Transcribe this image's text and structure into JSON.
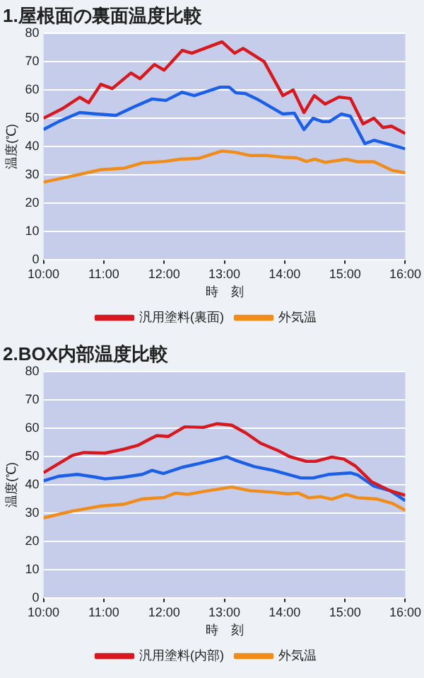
{
  "chart_data": [
    {
      "type": "line",
      "title": "1.屋根面の裏面温度比較",
      "xlabel": "時　刻",
      "ylabel": "温度(℃)",
      "xlim": [
        10,
        16
      ],
      "xticks": [
        {
          "value": 10,
          "label": "10:00"
        },
        {
          "value": 11,
          "label": "11:00"
        },
        {
          "value": 12,
          "label": "12:00"
        },
        {
          "value": 13,
          "label": "13:00"
        },
        {
          "value": 14,
          "label": "14:00"
        },
        {
          "value": 15,
          "label": "15:00"
        },
        {
          "value": 16,
          "label": "16:00"
        }
      ],
      "ylim": [
        0,
        80
      ],
      "yticks": [
        0,
        10,
        20,
        30,
        40,
        50,
        60,
        70,
        80
      ],
      "grid": "y",
      "legend": "bottom",
      "marker": "none",
      "line_style": "solid",
      "series": [
        {
          "name": "汎用塗料(裏面)",
          "color": "#d7191f",
          "x": [
            10,
            10.33,
            10.6,
            10.75,
            10.95,
            11.14,
            11.45,
            11.6,
            11.84,
            12,
            12.3,
            12.46,
            12.96,
            13.17,
            13.31,
            13.66,
            13.97,
            14.14,
            14.32,
            14.49,
            14.67,
            14.9,
            15.09,
            15.3,
            15.48,
            15.63,
            15.77,
            16
          ],
          "values": [
            50,
            53.6,
            57.4,
            55.5,
            62,
            60.5,
            66,
            64,
            69,
            67,
            74,
            73,
            77,
            73,
            74.7,
            70,
            58,
            60,
            52,
            58,
            55,
            57.5,
            57,
            48,
            50,
            46.7,
            47.2,
            44.6
          ]
        },
        {
          "color": "#1a5fe6",
          "x": [
            10,
            10.25,
            10.6,
            10.87,
            11.2,
            11.5,
            11.8,
            12.03,
            12.3,
            12.5,
            12.93,
            13.08,
            13.19,
            13.35,
            13.54,
            13.97,
            14.16,
            14.32,
            14.47,
            14.63,
            14.74,
            14.94,
            15.09,
            15.33,
            15.48,
            16
          ],
          "values": [
            46,
            48.8,
            52,
            51.5,
            51,
            54,
            56.8,
            56.3,
            59.2,
            58,
            61,
            61,
            59,
            58.7,
            56.8,
            51.5,
            51.8,
            46,
            50,
            48.8,
            48.8,
            51.5,
            50.7,
            41,
            42.2,
            39.2
          ]
        },
        {
          "name": "外気温",
          "color": "#f08c1a",
          "x": [
            10,
            10.48,
            10.95,
            11.33,
            11.64,
            12,
            12.26,
            12.57,
            12.96,
            13.19,
            13.43,
            13.7,
            13.97,
            14.2,
            14.36,
            14.5,
            14.67,
            15.02,
            15.21,
            15.48,
            15.79,
            16
          ],
          "values": [
            27.4,
            29.6,
            31.8,
            32.3,
            34.2,
            34.7,
            35.5,
            35.8,
            38.4,
            37.9,
            36.8,
            36.8,
            36.2,
            36,
            34.7,
            35.5,
            34.4,
            35.5,
            34.6,
            34.6,
            31.5,
            30.7
          ]
        }
      ]
    },
    {
      "type": "line",
      "title": "2.BOX内部温度比較",
      "xlabel": "時　刻",
      "ylabel": "温度(℃)",
      "xlim": [
        10,
        16
      ],
      "xticks": [
        {
          "value": 10,
          "label": "10:00"
        },
        {
          "value": 11,
          "label": "11:00"
        },
        {
          "value": 12,
          "label": "12:00"
        },
        {
          "value": 13,
          "label": "13:00"
        },
        {
          "value": 14,
          "label": "14:00"
        },
        {
          "value": 15,
          "label": "15:00"
        },
        {
          "value": 16,
          "label": "16:00"
        }
      ],
      "ylim": [
        0,
        80
      ],
      "yticks": [
        0,
        10,
        20,
        30,
        40,
        50,
        60,
        70,
        80
      ],
      "grid": "y",
      "legend": "bottom",
      "marker": "none",
      "line_style": "solid",
      "series": [
        {
          "name": "汎用塗料(内部)",
          "color": "#d7191f",
          "x": [
            10,
            10.48,
            10.67,
            11.02,
            11.33,
            11.56,
            11.8,
            11.88,
            12.07,
            12.34,
            12.65,
            12.88,
            13.12,
            13.35,
            13.6,
            13.9,
            14.09,
            14.36,
            14.51,
            14.78,
            14.98,
            15.17,
            15.44,
            15.75,
            16
          ],
          "values": [
            44.3,
            50.4,
            51.4,
            51.2,
            52.6,
            53.9,
            56.6,
            57.4,
            57.1,
            60.5,
            60.3,
            61.6,
            61.1,
            58.4,
            54.7,
            52,
            49.9,
            48.3,
            48.3,
            49.8,
            49.1,
            46.7,
            41.1,
            37.9,
            36.3
          ]
        },
        {
          "color": "#1a5fe6",
          "x": [
            10,
            10.25,
            10.56,
            10.87,
            11.02,
            11.33,
            11.64,
            11.8,
            11.99,
            12.3,
            12.57,
            13.04,
            13.19,
            13.5,
            13.81,
            14.27,
            14.47,
            14.74,
            15.09,
            15.21,
            15.48,
            15.75,
            16
          ],
          "values": [
            41.4,
            43,
            43.7,
            42.7,
            42.1,
            42.7,
            43.7,
            45.1,
            44,
            46.2,
            47.5,
            49.9,
            48.6,
            46.4,
            45.1,
            42.4,
            42.4,
            43.7,
            44.2,
            43.5,
            39.5,
            37.9,
            34.4
          ]
        },
        {
          "name": "外気温",
          "color": "#f08c1a",
          "x": [
            10,
            10.48,
            10.95,
            11.33,
            11.64,
            12,
            12.19,
            12.38,
            12.73,
            13.12,
            13.43,
            13.78,
            14.05,
            14.22,
            14.4,
            14.6,
            14.78,
            15.02,
            15.21,
            15.52,
            15.79,
            16
          ],
          "values": [
            28.3,
            30.7,
            32.5,
            33.1,
            35,
            35.5,
            37.1,
            36.6,
            37.9,
            39.2,
            37.9,
            37.4,
            36.8,
            37.1,
            35.4,
            35.8,
            34.9,
            36.6,
            35.4,
            35,
            33.4,
            31
          ]
        }
      ]
    }
  ]
}
